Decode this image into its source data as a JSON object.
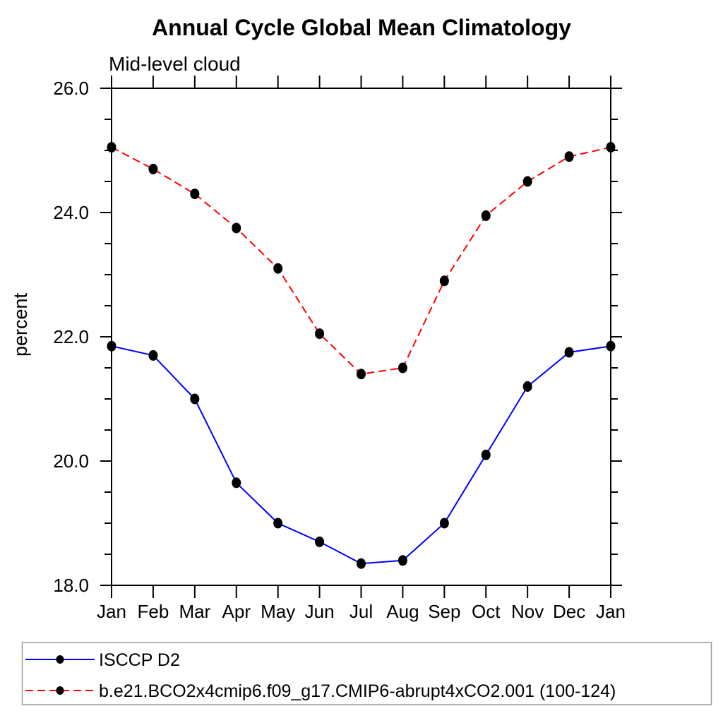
{
  "page": {
    "background": "#ffffff",
    "axis_color": "#000000",
    "legend_border_color": "#999999"
  },
  "chart_data": {
    "type": "line",
    "title": "Annual Cycle Global Mean Climatology",
    "subtitle": "Mid-level cloud",
    "ylabel": "percent",
    "xlabel": "",
    "categories": [
      "Jan",
      "Feb",
      "Mar",
      "Apr",
      "May",
      "Jun",
      "Jul",
      "Aug",
      "Sep",
      "Oct",
      "Nov",
      "Dec",
      "Jan"
    ],
    "ylim": [
      18.0,
      26.0
    ],
    "ytick_major": [
      18.0,
      20.0,
      22.0,
      24.0,
      26.0
    ],
    "ytick_major_labels": [
      "18.0",
      "20.0",
      "22.0",
      "24.0",
      "26.0"
    ],
    "ytick_minor_step": 0.5,
    "grid": false,
    "legend_position": "bottom",
    "marker": "filled-circle",
    "marker_color": "#000000",
    "series": [
      {
        "name": "ISCCP D2",
        "color": "#0000ff",
        "line_style": "solid",
        "values": [
          21.85,
          21.7,
          21.0,
          19.65,
          19.0,
          18.7,
          18.35,
          18.4,
          19.0,
          20.1,
          21.2,
          21.75,
          21.85
        ]
      },
      {
        "name": "b.e21.BCO2x4cmip6.f09_g17.CMIP6-abrupt4xCO2.001 (100-124)",
        "color": "#ff0000",
        "line_style": "dashed",
        "values": [
          25.05,
          24.7,
          24.3,
          23.75,
          23.1,
          22.05,
          21.4,
          21.5,
          22.9,
          23.95,
          24.5,
          24.9,
          25.05
        ]
      }
    ]
  }
}
